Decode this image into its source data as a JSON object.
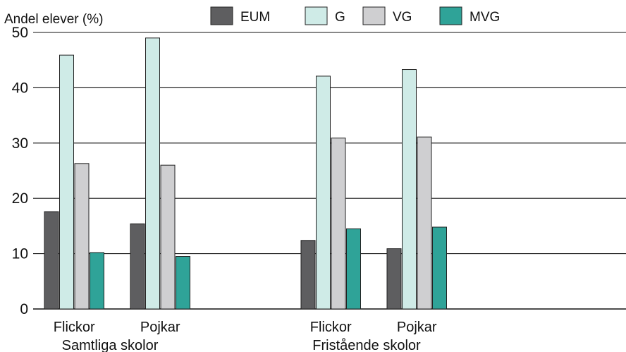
{
  "chart_data": {
    "type": "bar",
    "ylabel": "Andel elever (%)",
    "ylim": [
      0,
      50
    ],
    "yticks": [
      0,
      10,
      20,
      30,
      40,
      50
    ],
    "grid": true,
    "legend_position": "top",
    "groups": [
      "Samtliga skolor",
      "Fristående skolor"
    ],
    "categories": [
      {
        "label": "Flickor",
        "group": 0
      },
      {
        "label": "Pojkar",
        "group": 0
      },
      {
        "label": "Flickor",
        "group": 1
      },
      {
        "label": "Pojkar",
        "group": 1
      }
    ],
    "series": [
      {
        "name": "EUM",
        "color": "#5e5e60",
        "values": [
          17.6,
          15.4,
          12.4,
          10.9
        ]
      },
      {
        "name": "G",
        "color": "#cfebe7",
        "values": [
          45.9,
          49.0,
          42.1,
          43.3
        ]
      },
      {
        "name": "VG",
        "color": "#cfcfd1",
        "values": [
          26.3,
          26.0,
          30.9,
          31.1
        ]
      },
      {
        "name": "MVG",
        "color": "#2fa398",
        "values": [
          10.2,
          9.5,
          14.5,
          14.8
        ]
      }
    ]
  }
}
